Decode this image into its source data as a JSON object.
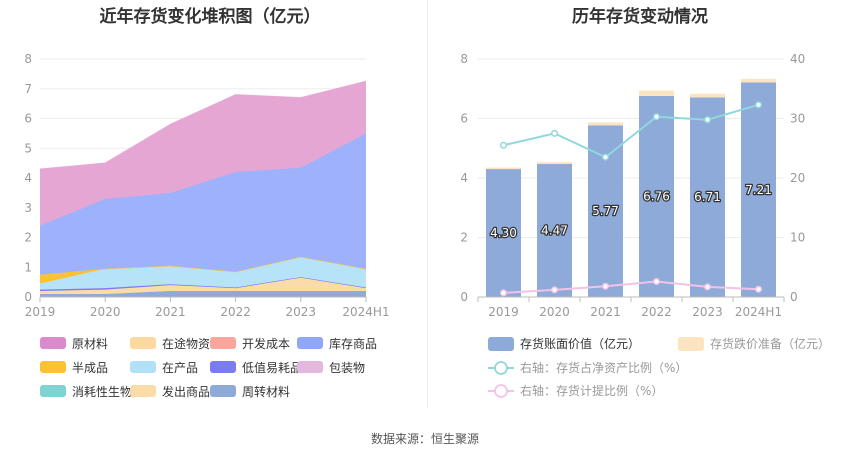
{
  "source_label": "数据来源：恒生聚源",
  "chart_data": [
    {
      "type": "area",
      "stacked": true,
      "title": "近年存货变化堆积图（亿元）",
      "categories": [
        "2019",
        "2020",
        "2021",
        "2022",
        "2023",
        "2024H1"
      ],
      "ylim": [
        0,
        8
      ],
      "yticks": [
        0,
        1,
        2,
        3,
        4,
        5,
        6,
        7,
        8
      ],
      "series": [
        {
          "name": "周转材料",
          "color": "#8eaad8",
          "values": [
            0.1,
            0.1,
            0.2,
            0.2,
            0.2,
            0.2
          ]
        },
        {
          "name": "发出商品",
          "color": "#fcdca6",
          "values": [
            0.1,
            0.15,
            0.2,
            0.1,
            0.45,
            0.1
          ]
        },
        {
          "name": "包装物",
          "color": "#e3b7de",
          "values": [
            0,
            0,
            0,
            0,
            0,
            0
          ]
        },
        {
          "name": "消耗性生物资产",
          "color": "#7fd3d3",
          "values": [
            0,
            0,
            0,
            0,
            0,
            0
          ]
        },
        {
          "name": "低值易耗品",
          "color": "#7a7cf0",
          "values": [
            0.05,
            0.05,
            0.03,
            0.02,
            0.02,
            0.02
          ]
        },
        {
          "name": "在产品",
          "color": "#b7e3f8",
          "values": [
            0.2,
            0.65,
            0.62,
            0.53,
            0.68,
            0.63
          ]
        },
        {
          "name": "半成品",
          "color": "#fcc235",
          "values": [
            0.3,
            0,
            0,
            0,
            0,
            0
          ]
        },
        {
          "name": "库存商品",
          "color": "#9db2fb",
          "values": [
            1.65,
            2.35,
            2.45,
            3.35,
            3.0,
            4.55
          ]
        },
        {
          "name": "开发成本",
          "color": "#f9a79a",
          "values": [
            0,
            0,
            0,
            0,
            0,
            0
          ]
        },
        {
          "name": "在途物资",
          "color": "#fcd9a0",
          "values": [
            0,
            0,
            0,
            0,
            0,
            0
          ]
        },
        {
          "name": "原材料",
          "color": "#e6a6d4",
          "values": [
            1.9,
            1.2,
            2.3,
            2.6,
            2.35,
            1.75
          ]
        }
      ],
      "legend": {
        "position": "bottom",
        "order": [
          "原材料",
          "在途物资",
          "开发成本",
          "库存商品",
          "半成品",
          "在产品",
          "低值易耗品",
          "包装物",
          "消耗性生物资产",
          "发出商品",
          "周转材料"
        ],
        "swatch_colors": {
          "原材料": "#d98bcb",
          "在途物资": "#fcd9a0",
          "开发成本": "#f9a79a",
          "库存商品": "#8fa7f5",
          "半成品": "#fcc235",
          "在产品": "#b0e1f7",
          "低值易耗品": "#7a7cf0",
          "包装物": "#e3b7de",
          "消耗性生物资产": "#7fd3d3",
          "发出商品": "#fcdca6",
          "周转材料": "#8eaad8"
        }
      }
    },
    {
      "type": "bar",
      "title": "历年存货变动情况",
      "categories": [
        "2019",
        "2020",
        "2021",
        "2022",
        "2023",
        "2024H1"
      ],
      "ylim": [
        0,
        8
      ],
      "yticks": [
        0,
        2,
        4,
        6,
        8
      ],
      "y2lim": [
        0,
        40
      ],
      "y2ticks": [
        0,
        10,
        20,
        30,
        40
      ],
      "series": [
        {
          "name": "存货账面价值（亿元）",
          "type": "bar",
          "color": "#8eaad8",
          "values": [
            4.3,
            4.47,
            5.77,
            6.76,
            6.71,
            7.21
          ],
          "labels": [
            "4.30",
            "4.47",
            "5.77",
            "6.76",
            "6.71",
            "7.21"
          ]
        },
        {
          "name": "存货跌价准备（亿元）",
          "type": "bar-stacked",
          "color": "#fce4c0",
          "values": [
            0.05,
            0.06,
            0.1,
            0.18,
            0.12,
            0.12
          ]
        },
        {
          "name": "右轴：存货占净资产比例（%）",
          "type": "line",
          "axis": "right",
          "color": "#8fd8dc",
          "values": [
            25.5,
            27.5,
            23.5,
            30.3,
            29.8,
            32.3
          ]
        },
        {
          "name": "右轴：存货计提比例（%）",
          "type": "line",
          "axis": "right",
          "color": "#f2c3e6",
          "values": [
            0.7,
            1.2,
            1.8,
            2.6,
            1.7,
            1.3
          ]
        }
      ],
      "legend": {
        "position": "bottom"
      }
    }
  ]
}
